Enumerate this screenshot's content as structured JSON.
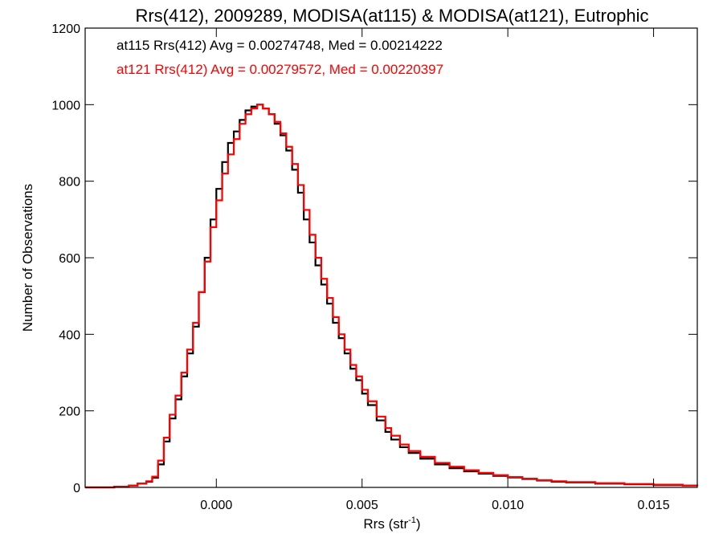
{
  "chart_data": {
    "type": "line",
    "title": "Rrs(412), 2009289, MODISA(at115) & MODISA(at121), Eutrophic",
    "xlabel_main": "Rrs (str",
    "xlabel_sup": "-1",
    "xlabel_end": ")",
    "ylabel": "Number of Observations",
    "xlim": [
      -0.0045,
      0.0165
    ],
    "ylim": [
      0,
      1200
    ],
    "x_ticks": [
      {
        "value": 0.0,
        "label": "0.000"
      },
      {
        "value": 0.005,
        "label": "0.005"
      },
      {
        "value": 0.01,
        "label": "0.010"
      },
      {
        "value": 0.015,
        "label": "0.015"
      }
    ],
    "y_ticks": [
      {
        "value": 0,
        "label": "0"
      },
      {
        "value": 200,
        "label": "200"
      },
      {
        "value": 400,
        "label": "400"
      },
      {
        "value": 600,
        "label": "600"
      },
      {
        "value": 800,
        "label": "800"
      },
      {
        "value": 1000,
        "label": "1000"
      },
      {
        "value": 1200,
        "label": "1200"
      }
    ],
    "legend_position": "top-left",
    "series": [
      {
        "name": "at115",
        "color": "#000000",
        "legend_text": "at115 Rrs(412) Avg = 0.00274748, Med = 0.00214222",
        "x": [
          -0.0045,
          -0.0035,
          -0.003,
          -0.0027,
          -0.0024,
          -0.0022,
          -0.002,
          -0.0018,
          -0.0016,
          -0.0014,
          -0.0012,
          -0.001,
          -0.0008,
          -0.0006,
          -0.0004,
          -0.0002,
          0.0,
          0.0002,
          0.0004,
          0.0006,
          0.0008,
          0.001,
          0.0012,
          0.0014,
          0.0016,
          0.0018,
          0.002,
          0.0022,
          0.0024,
          0.0026,
          0.0028,
          0.003,
          0.0032,
          0.0034,
          0.0036,
          0.0038,
          0.004,
          0.0042,
          0.0044,
          0.0046,
          0.0048,
          0.005,
          0.0052,
          0.0055,
          0.0058,
          0.006,
          0.0063,
          0.0066,
          0.007,
          0.0075,
          0.008,
          0.0085,
          0.009,
          0.0095,
          0.01,
          0.0105,
          0.011,
          0.0115,
          0.012,
          0.013,
          0.014,
          0.015,
          0.016,
          0.0165
        ],
        "y": [
          0,
          2,
          5,
          10,
          15,
          25,
          60,
          120,
          180,
          230,
          290,
          350,
          420,
          510,
          600,
          700,
          780,
          850,
          900,
          930,
          960,
          985,
          995,
          1000,
          990,
          975,
          950,
          920,
          880,
          830,
          770,
          700,
          640,
          580,
          530,
          480,
          430,
          390,
          350,
          310,
          280,
          245,
          215,
          175,
          145,
          125,
          105,
          90,
          75,
          60,
          50,
          42,
          36,
          30,
          26,
          22,
          18,
          15,
          13,
          10,
          8,
          6,
          5,
          4
        ]
      },
      {
        "name": "at121",
        "color": "#ff0000",
        "legend_text": "at121 Rrs(412) Avg = 0.00279572, Med = 0.00220397",
        "x": [
          -0.0045,
          -0.0035,
          -0.003,
          -0.0027,
          -0.0024,
          -0.0022,
          -0.002,
          -0.0018,
          -0.0016,
          -0.0014,
          -0.0012,
          -0.001,
          -0.0008,
          -0.0006,
          -0.0004,
          -0.0002,
          0.0,
          0.0002,
          0.0004,
          0.0006,
          0.0008,
          0.001,
          0.0012,
          0.0014,
          0.0016,
          0.0018,
          0.002,
          0.0022,
          0.0024,
          0.0026,
          0.0028,
          0.003,
          0.0032,
          0.0034,
          0.0036,
          0.0038,
          0.004,
          0.0042,
          0.0044,
          0.0046,
          0.0048,
          0.005,
          0.0052,
          0.0055,
          0.0058,
          0.006,
          0.0063,
          0.0066,
          0.007,
          0.0075,
          0.008,
          0.0085,
          0.009,
          0.0095,
          0.01,
          0.0105,
          0.011,
          0.0115,
          0.012,
          0.013,
          0.014,
          0.015,
          0.016,
          0.0165
        ],
        "y": [
          0,
          2,
          5,
          10,
          16,
          28,
          70,
          130,
          190,
          240,
          300,
          360,
          430,
          510,
          590,
          680,
          750,
          820,
          870,
          910,
          950,
          975,
          990,
          1000,
          990,
          975,
          955,
          925,
          890,
          845,
          790,
          725,
          660,
          600,
          545,
          495,
          445,
          400,
          360,
          320,
          290,
          255,
          225,
          185,
          155,
          135,
          112,
          95,
          80,
          64,
          54,
          45,
          38,
          32,
          27,
          23,
          19,
          16,
          14,
          11,
          9,
          7,
          5,
          4
        ]
      }
    ]
  }
}
